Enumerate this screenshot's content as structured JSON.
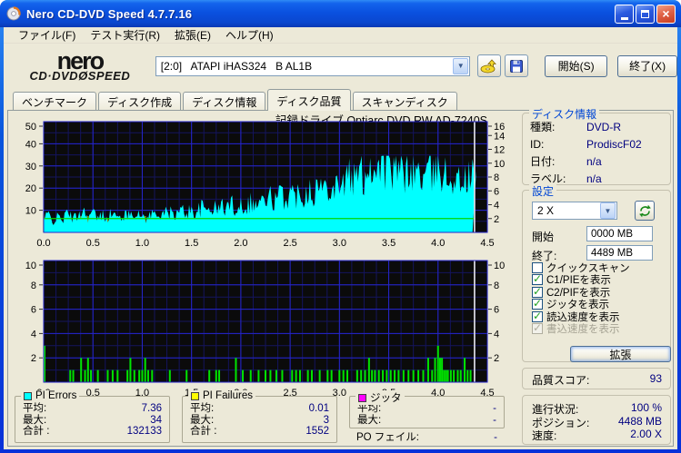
{
  "colors": {
    "accent_blue": "#0a51e0",
    "panel": "#ece9d8",
    "value_navy": "#000080",
    "plot_bg": "#0b0b0b",
    "grid_major": "#2525cc",
    "grid_minor": "#14145e",
    "cyan": "#00ffff",
    "green": "#00d800",
    "bar_green": "#00e400",
    "yellow": "#ffff00",
    "magenta": "#ff00ff",
    "cursor": "#e6e6e6"
  },
  "window": {
    "title": "Nero CD-DVD Speed 4.7.7.16"
  },
  "menu": {
    "items": [
      "ファイル(F)",
      "テスト実行(R)",
      "拡張(E)",
      "ヘルプ(H)"
    ]
  },
  "toolbar": {
    "logo_line1": "nero",
    "logo_cd_dvd": "CD·DVD",
    "logo_disc": "Ø",
    "logo_speed": "SPEED",
    "drive_select": {
      "value": "[2:0]   ATAPI iHAS324   B AL1B"
    },
    "start_label": "開始(S)",
    "exit_label": "終了(X)"
  },
  "tabs": [
    {
      "label": "ベンチマーク",
      "active": false
    },
    {
      "label": "ディスク作成",
      "active": false
    },
    {
      "label": "ディスク情報",
      "active": false
    },
    {
      "label": "ディスク品質",
      "active": true
    },
    {
      "label": "スキャンディスク",
      "active": false
    }
  ],
  "chart_title": "記録ドライブ Optiarc   DVD RW AD-7240S",
  "chart_data": [
    {
      "type": "area",
      "name": "PI Errors scan",
      "title": "記録ドライブ Optiarc   DVD RW AD-7240S",
      "xlim": [
        0,
        4.5
      ],
      "x_ticks": [
        "0.0",
        "0.5",
        "1.0",
        "1.5",
        "2.0",
        "2.5",
        "3.0",
        "3.5",
        "4.0",
        "4.5"
      ],
      "left_axis": {
        "max": 50,
        "ticks": [
          50,
          40,
          30,
          20,
          10
        ]
      },
      "right_axis": {
        "max": 16,
        "ticks": [
          16,
          14,
          12,
          10,
          8,
          6,
          4,
          2
        ]
      },
      "grid": true,
      "data_end_x": 4.35,
      "cursor_x": 4.37,
      "series": [
        {
          "name": "PI Errors",
          "color": "#00ffff",
          "style": "filled-histogram",
          "x_start": 0,
          "x_step": 0.05,
          "values": [
            6,
            8,
            5,
            7,
            6,
            9,
            6,
            8,
            10,
            7,
            9,
            6,
            8,
            7,
            9,
            6,
            8,
            7,
            11,
            7,
            8,
            6,
            9,
            7,
            10,
            8,
            9,
            8,
            10,
            9,
            10,
            9,
            11,
            10,
            12,
            10,
            12,
            11,
            13,
            11,
            13,
            12,
            14,
            12,
            15,
            13,
            16,
            14,
            17,
            15,
            18,
            16,
            19,
            17,
            21,
            18,
            22,
            19,
            24,
            20,
            25,
            22,
            26,
            23,
            28,
            25,
            32,
            27,
            34,
            28,
            31,
            26,
            29,
            25,
            31,
            26,
            28,
            24,
            27,
            25,
            33,
            27,
            24,
            26,
            22,
            25,
            23,
            26
          ]
        },
        {
          "name": "読込速度",
          "color": "#00d800",
          "style": "line",
          "axis": "right",
          "value": 2.0
        }
      ]
    },
    {
      "type": "bar",
      "name": "PI Failures scan",
      "xlim": [
        0,
        4.5
      ],
      "x_ticks": [
        "0.0",
        "0.5",
        "1.0",
        "1.5",
        "2.0",
        "2.5",
        "3.0",
        "3.5",
        "4.0",
        "4.5"
      ],
      "left_axis": {
        "max": 10,
        "ticks": [
          10,
          8,
          6,
          4,
          2
        ]
      },
      "right_axis": {
        "max": 10,
        "ticks": [
          10,
          8,
          6,
          4,
          2
        ]
      },
      "grid": true,
      "cursor_x": 4.37,
      "series": [
        {
          "name": "PI Failures",
          "color": "#00e400",
          "style": "spikes",
          "points": [
            [
              0.0,
              3
            ],
            [
              0.27,
              1
            ],
            [
              0.3,
              1
            ],
            [
              0.38,
              2
            ],
            [
              0.42,
              1
            ],
            [
              0.45,
              2
            ],
            [
              0.48,
              1
            ],
            [
              0.55,
              1
            ],
            [
              0.65,
              1
            ],
            [
              0.7,
              1
            ],
            [
              0.75,
              1
            ],
            [
              0.85,
              1
            ],
            [
              0.88,
              2
            ],
            [
              0.92,
              1
            ],
            [
              0.97,
              1
            ],
            [
              1.0,
              1
            ],
            [
              1.03,
              2
            ],
            [
              1.06,
              1
            ],
            [
              1.1,
              1
            ],
            [
              1.28,
              1
            ],
            [
              1.45,
              1
            ],
            [
              1.68,
              1
            ],
            [
              1.75,
              1
            ],
            [
              1.78,
              1
            ],
            [
              1.95,
              2
            ],
            [
              2.02,
              1
            ],
            [
              2.1,
              1
            ],
            [
              2.18,
              1
            ],
            [
              2.25,
              1
            ],
            [
              2.3,
              1
            ],
            [
              2.36,
              1
            ],
            [
              2.42,
              1
            ],
            [
              2.52,
              1
            ],
            [
              2.56,
              1
            ],
            [
              2.6,
              1
            ],
            [
              2.68,
              1
            ],
            [
              2.72,
              1
            ],
            [
              2.8,
              1
            ],
            [
              2.88,
              1
            ],
            [
              2.92,
              1
            ],
            [
              3.0,
              1
            ],
            [
              3.04,
              1
            ],
            [
              3.08,
              1
            ],
            [
              3.18,
              1
            ],
            [
              3.22,
              1
            ],
            [
              3.26,
              1
            ],
            [
              3.3,
              2
            ],
            [
              3.33,
              1
            ],
            [
              3.36,
              1
            ],
            [
              3.4,
              1
            ],
            [
              3.44,
              1
            ],
            [
              3.48,
              1
            ],
            [
              3.52,
              1
            ],
            [
              3.56,
              1
            ],
            [
              3.6,
              1
            ],
            [
              3.65,
              1
            ],
            [
              3.7,
              1
            ],
            [
              3.75,
              1
            ],
            [
              3.8,
              1
            ],
            [
              3.85,
              1
            ],
            [
              3.9,
              2
            ],
            [
              3.94,
              1
            ],
            [
              3.97,
              2
            ],
            [
              4.0,
              3
            ],
            [
              4.02,
              2
            ],
            [
              4.04,
              2
            ],
            [
              4.06,
              1
            ],
            [
              4.08,
              1
            ],
            [
              4.1,
              1
            ],
            [
              4.13,
              1
            ],
            [
              4.16,
              1
            ],
            [
              4.2,
              1
            ],
            [
              4.23,
              1
            ],
            [
              4.27,
              2
            ],
            [
              4.3,
              1
            ],
            [
              4.33,
              1
            ]
          ]
        }
      ]
    }
  ],
  "legend_boxes": [
    {
      "title": "PI Errors",
      "swatch": "#00ffff",
      "rows": [
        [
          "平均:",
          "7.36"
        ],
        [
          "最大:",
          "34"
        ],
        [
          "合計 :",
          "132133"
        ]
      ]
    },
    {
      "title": "PI Failures",
      "swatch": "#ffff00",
      "rows": [
        [
          "平均:",
          "0.01"
        ],
        [
          "最大:",
          "3"
        ],
        [
          "合計 :",
          "1552"
        ]
      ]
    },
    {
      "title": "ジッタ",
      "swatch": "#ff00ff",
      "rows": [
        [
          "平均:",
          "-"
        ],
        [
          "最大:",
          "-"
        ]
      ],
      "outside_row": [
        "PO フェイル:",
        "-"
      ]
    }
  ],
  "sidebar": {
    "disc_info": {
      "title": "ディスク情報",
      "rows": [
        [
          "種類:",
          "DVD-R"
        ],
        [
          "ID:",
          "ProdiscF02"
        ],
        [
          "日付:",
          "n/a"
        ],
        [
          "ラベル:",
          "n/a"
        ]
      ]
    },
    "settings": {
      "title": "設定",
      "speed_value": "2 X",
      "start_label": "開始",
      "start_value": "0000 MB",
      "end_label": "終了:",
      "end_value": "4489 MB",
      "checkboxes": [
        {
          "label": "クイックスキャン",
          "checked": false,
          "disabled": false
        },
        {
          "label": "C1/PIEを表示",
          "checked": true,
          "disabled": false
        },
        {
          "label": "C2/PIFを表示",
          "checked": true,
          "disabled": false
        },
        {
          "label": "ジッタを表示",
          "checked": true,
          "disabled": false
        },
        {
          "label": "読込速度を表示",
          "checked": true,
          "disabled": false
        },
        {
          "label": "書込速度を表示",
          "checked": true,
          "disabled": true
        }
      ],
      "advanced_label": "拡張"
    },
    "quality": {
      "label": "品質スコア:",
      "value": "93"
    },
    "progress": {
      "rows": [
        [
          "進行状況:",
          "100 %"
        ],
        [
          "ポジション:",
          "4488 MB"
        ],
        [
          "速度:",
          "2.00 X"
        ]
      ]
    }
  }
}
